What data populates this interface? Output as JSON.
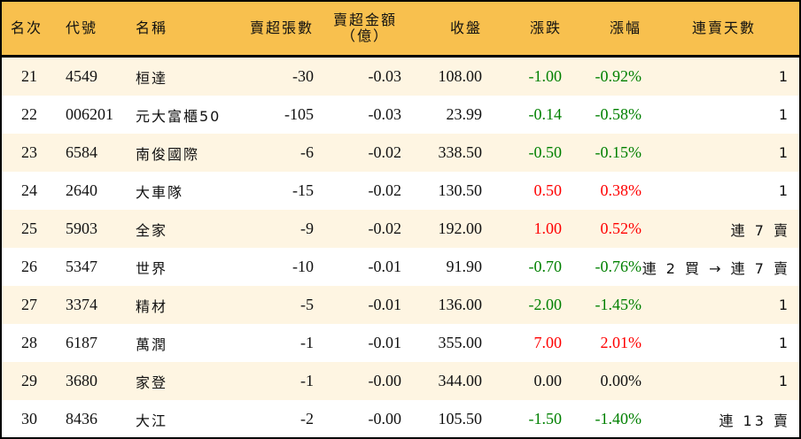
{
  "headers": {
    "rank": "名次",
    "code": "代號",
    "name": "名稱",
    "shares": "賣超張數",
    "amount_line1": "賣超金額",
    "amount_line2": "（億）",
    "close": "收盤",
    "change": "漲跌",
    "pct": "漲幅",
    "streak": "連賣天數"
  },
  "colors": {
    "header": "#F8C04E",
    "odd_row": "#FEF5E2",
    "up": "#FF0000",
    "down": "#008000"
  },
  "rows": [
    {
      "rank": "21",
      "code": "4549",
      "name": "桓達",
      "shares": "-30",
      "amount": "-0.03",
      "close": "108.00",
      "change": "-1.00",
      "pct": "-0.92%",
      "dir": "down",
      "streak": "1"
    },
    {
      "rank": "22",
      "code": "006201",
      "name": "元大富櫃50",
      "shares": "-105",
      "amount": "-0.03",
      "close": "23.99",
      "change": "-0.14",
      "pct": "-0.58%",
      "dir": "down",
      "streak": "1"
    },
    {
      "rank": "23",
      "code": "6584",
      "name": "南俊國際",
      "shares": "-6",
      "amount": "-0.02",
      "close": "338.50",
      "change": "-0.50",
      "pct": "-0.15%",
      "dir": "down",
      "streak": "1"
    },
    {
      "rank": "24",
      "code": "2640",
      "name": "大車隊",
      "shares": "-15",
      "amount": "-0.02",
      "close": "130.50",
      "change": "0.50",
      "pct": "0.38%",
      "dir": "up",
      "streak": "1"
    },
    {
      "rank": "25",
      "code": "5903",
      "name": "全家",
      "shares": "-9",
      "amount": "-0.02",
      "close": "192.00",
      "change": "1.00",
      "pct": "0.52%",
      "dir": "up",
      "streak": "連 7 賣"
    },
    {
      "rank": "26",
      "code": "5347",
      "name": "世界",
      "shares": "-10",
      "amount": "-0.01",
      "close": "91.90",
      "change": "-0.70",
      "pct": "-0.76%",
      "dir": "down",
      "streak": "連 2 買 → 連 7 賣"
    },
    {
      "rank": "27",
      "code": "3374",
      "name": "精材",
      "shares": "-5",
      "amount": "-0.01",
      "close": "136.00",
      "change": "-2.00",
      "pct": "-1.45%",
      "dir": "down",
      "streak": "1"
    },
    {
      "rank": "28",
      "code": "6187",
      "name": "萬潤",
      "shares": "-1",
      "amount": "-0.01",
      "close": "355.00",
      "change": "7.00",
      "pct": "2.01%",
      "dir": "up",
      "streak": "1"
    },
    {
      "rank": "29",
      "code": "3680",
      "name": "家登",
      "shares": "-1",
      "amount": "-0.00",
      "close": "344.00",
      "change": "0.00",
      "pct": "0.00%",
      "dir": "flat",
      "streak": "1"
    },
    {
      "rank": "30",
      "code": "8436",
      "name": "大江",
      "shares": "-2",
      "amount": "-0.00",
      "close": "105.50",
      "change": "-1.50",
      "pct": "-1.40%",
      "dir": "down",
      "streak": "連 13 賣"
    }
  ]
}
